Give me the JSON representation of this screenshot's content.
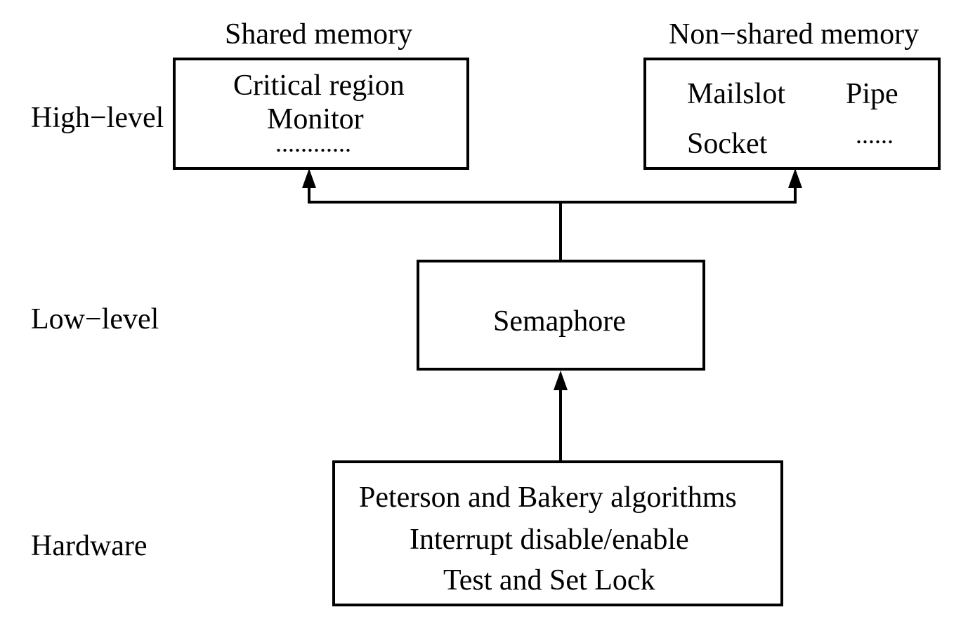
{
  "headings": {
    "shared": "Shared memory",
    "non_shared": "Non−shared memory"
  },
  "levels": {
    "high": "High−level",
    "low": "Low−level",
    "hardware": "Hardware"
  },
  "boxes": {
    "shared": {
      "lines": [
        "Critical region",
        "Monitor",
        "............"
      ]
    },
    "non_shared": {
      "items": [
        "Mailslot",
        "Pipe",
        "Socket",
        "......"
      ]
    },
    "semaphore": {
      "label": "Semaphore"
    },
    "hardware": {
      "lines": [
        "Peterson and Bakery algorithms",
        "Interrupt disable/enable",
        "Test and Set Lock"
      ]
    }
  }
}
